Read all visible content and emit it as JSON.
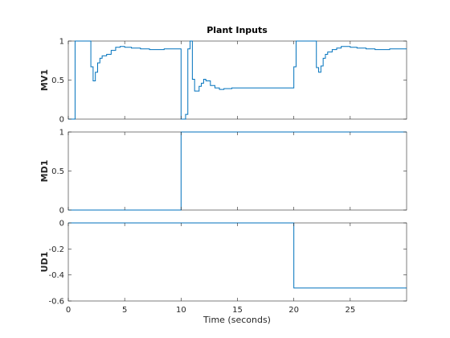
{
  "figure": {
    "title": "Plant Inputs",
    "xlabel": "Time (seconds)"
  },
  "colors": {
    "line": "#0072BD",
    "axes": "#262626",
    "background": "#ffffff"
  },
  "chart_data": [
    {
      "type": "line",
      "step": true,
      "grid": false,
      "title": "Plant Inputs",
      "ylabel": "MV1",
      "xlabel": "",
      "xlim": [
        0,
        30
      ],
      "ylim": [
        0,
        1
      ],
      "xticks": [
        0,
        5,
        10,
        15,
        20,
        25
      ],
      "xtick_labels": [
        "",
        "",
        "",
        "",
        "",
        ""
      ],
      "yticks": [
        0,
        0.5,
        1
      ],
      "ytick_labels": [
        "0",
        "0.5",
        "1"
      ],
      "series": [
        {
          "x": [
            0,
            0.6,
            0.6,
            1.0,
            1.0,
            2.0,
            2.0,
            2.2,
            2.2,
            2.4,
            2.4,
            2.6,
            2.6,
            2.8,
            2.8,
            3.0,
            3.0,
            3.4,
            3.4,
            3.8,
            3.8,
            4.2,
            4.2,
            4.6,
            4.6,
            5.0,
            5.0,
            5.6,
            5.6,
            6.4,
            6.4,
            7.2,
            7.2,
            8.5,
            8.5,
            10.0,
            10.0,
            10.4,
            10.4,
            10.6,
            10.6,
            10.8,
            10.8,
            11.0,
            11.0,
            11.2,
            11.2,
            11.6,
            11.6,
            11.8,
            11.8,
            12.0,
            12.0,
            12.2,
            12.2,
            12.6,
            12.6,
            13.0,
            13.0,
            13.4,
            13.4,
            13.8,
            13.8,
            14.5,
            14.5,
            16.0,
            16.0,
            20.0,
            20.0,
            20.2,
            20.2,
            22.0,
            22.0,
            22.2,
            22.2,
            22.4,
            22.4,
            22.6,
            22.6,
            22.8,
            22.8,
            23.0,
            23.0,
            23.4,
            23.4,
            23.8,
            23.8,
            24.2,
            24.2,
            24.6,
            24.6,
            25.0,
            25.0,
            25.6,
            25.6,
            26.4,
            26.4,
            27.2,
            27.2,
            28.5,
            28.5,
            30
          ],
          "y": [
            0,
            0,
            1,
            1,
            1,
            1,
            0.67,
            0.67,
            0.49,
            0.49,
            0.6,
            0.6,
            0.72,
            0.72,
            0.78,
            0.78,
            0.81,
            0.81,
            0.83,
            0.83,
            0.88,
            0.88,
            0.92,
            0.92,
            0.93,
            0.93,
            0.92,
            0.92,
            0.91,
            0.91,
            0.9,
            0.9,
            0.89,
            0.89,
            0.9,
            0.9,
            0.0,
            0.0,
            0.06,
            0.06,
            0.9,
            0.9,
            1.0,
            1.0,
            0.51,
            0.51,
            0.36,
            0.36,
            0.42,
            0.42,
            0.46,
            0.46,
            0.51,
            0.51,
            0.49,
            0.49,
            0.43,
            0.43,
            0.4,
            0.4,
            0.38,
            0.38,
            0.39,
            0.39,
            0.4,
            0.4,
            0.4,
            0.4,
            0.67,
            0.67,
            1.0,
            1.0,
            0.66,
            0.66,
            0.6,
            0.6,
            0.68,
            0.68,
            0.78,
            0.78,
            0.83,
            0.83,
            0.86,
            0.86,
            0.89,
            0.89,
            0.91,
            0.91,
            0.93,
            0.93,
            0.93,
            0.93,
            0.92,
            0.92,
            0.91,
            0.91,
            0.9,
            0.9,
            0.89,
            0.89,
            0.9,
            0.9
          ]
        }
      ]
    },
    {
      "type": "line",
      "step": true,
      "grid": false,
      "ylabel": "MD1",
      "xlim": [
        0,
        30
      ],
      "ylim": [
        0,
        1
      ],
      "xticks": [
        0,
        5,
        10,
        15,
        20,
        25
      ],
      "xtick_labels": [
        "",
        "",
        "",
        "",
        "",
        ""
      ],
      "yticks": [
        0,
        0.5,
        1
      ],
      "ytick_labels": [
        "0",
        "0.5",
        "1"
      ],
      "series": [
        {
          "x": [
            0,
            10,
            10,
            30
          ],
          "y": [
            0,
            0,
            1,
            1
          ]
        }
      ]
    },
    {
      "type": "line",
      "step": true,
      "grid": false,
      "ylabel": "UD1",
      "xlabel": "Time (seconds)",
      "xlim": [
        0,
        30
      ],
      "ylim": [
        -0.6,
        0
      ],
      "xticks": [
        0,
        5,
        10,
        15,
        20,
        25
      ],
      "xtick_labels": [
        "0",
        "5",
        "10",
        "15",
        "20",
        "25"
      ],
      "yticks": [
        -0.6,
        -0.4,
        -0.2,
        0
      ],
      "ytick_labels": [
        "-0.6",
        "-0.4",
        "-0.2",
        "0"
      ],
      "series": [
        {
          "x": [
            0,
            20,
            20,
            30
          ],
          "y": [
            0,
            0,
            -0.5,
            -0.5
          ]
        }
      ]
    }
  ]
}
